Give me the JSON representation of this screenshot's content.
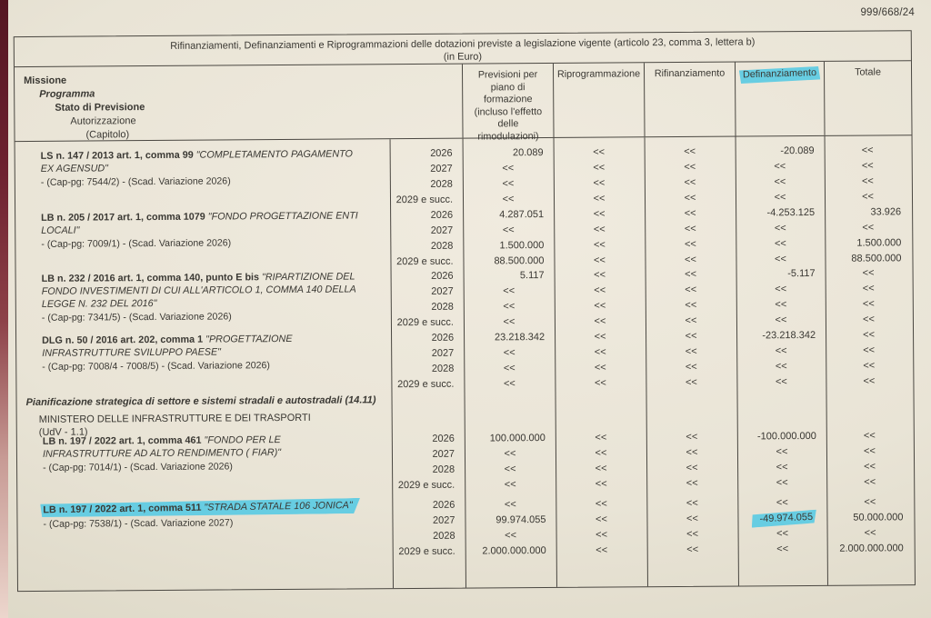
{
  "doc_number": "999/668/24",
  "table": {
    "title": "Rifinanziamenti, Definanziamenti e Riprogrammazioni delle dotazioni previste a legislazione vigente (articolo 23, comma 3, lettera b)",
    "subtitle": "(in Euro)",
    "row_header": [
      "Missione",
      "Programma",
      "Stato di Previsione",
      "Autorizzazione",
      "(Capitolo)"
    ],
    "columns": {
      "previsioni": "Previsioni per piano di formazione (incluso l'effetto delle rimodulazioni)",
      "riprogrammazione": "Riprogrammazione",
      "rifinanziamento": "Rifinanziamento",
      "definanziamento": "Definanziamento",
      "totale": "Totale"
    }
  },
  "years": [
    "2026",
    "2027",
    "2028",
    "2029 e succ."
  ],
  "section": {
    "programma": "Pianificazione strategica di settore e sistemi stradali e autostradali (14.11)",
    "stato_previsione": "MINISTERO DELLE INFRASTRUTTURE E DEI TRASPORTI",
    "udv": "(UdV - 1.1)"
  },
  "groups": [
    {
      "ref": "LS n. 147 / 2013 art. 1, comma 99 ",
      "name": "\"COMPLETAMENTO PAGAMENTO EX AGENSUD\"",
      "cap": "- (Cap-pg: 7544/2) - (Scad. Variazione 2026)",
      "previsioni": [
        "20.089",
        "<<",
        "<<",
        "<<"
      ],
      "riprogrammazione": [
        "<<",
        "<<",
        "<<",
        "<<"
      ],
      "rifinanziamento": [
        "<<",
        "<<",
        "<<",
        "<<"
      ],
      "definanziamento": [
        "-20.089",
        "<<",
        "<<",
        "<<"
      ],
      "totale": [
        "<<",
        "<<",
        "<<",
        "<<"
      ]
    },
    {
      "ref": "LB n. 205 / 2017 art. 1, comma 1079 ",
      "name": "\"FONDO PROGETTAZIONE ENTI LOCALI\"",
      "cap": "- (Cap-pg: 7009/1) - (Scad. Variazione 2026)",
      "previsioni": [
        "4.287.051",
        "<<",
        "1.500.000",
        "88.500.000"
      ],
      "riprogrammazione": [
        "<<",
        "<<",
        "<<",
        "<<"
      ],
      "rifinanziamento": [
        "<<",
        "<<",
        "<<",
        "<<"
      ],
      "definanziamento": [
        "-4.253.125",
        "<<",
        "<<",
        "<<"
      ],
      "totale": [
        "33.926",
        "<<",
        "1.500.000",
        "88.500.000"
      ]
    },
    {
      "ref": "LB n. 232 / 2016 art. 1, comma 140, punto E bis ",
      "name": "\"RIPARTIZIONE DEL FONDO INVESTIMENTI DI CUI ALL'ARTICOLO 1, COMMA 140 DELLA LEGGE N. 232 DEL 2016\"",
      "cap": "- (Cap-pg: 7341/5) - (Scad. Variazione 2026)",
      "previsioni": [
        "5.117",
        "<<",
        "<<",
        "<<"
      ],
      "riprogrammazione": [
        "<<",
        "<<",
        "<<",
        "<<"
      ],
      "rifinanziamento": [
        "<<",
        "<<",
        "<<",
        "<<"
      ],
      "definanziamento": [
        "-5.117",
        "<<",
        "<<",
        "<<"
      ],
      "totale": [
        "<<",
        "<<",
        "<<",
        "<<"
      ]
    },
    {
      "ref": "DLG n. 50 / 2016 art. 202, comma 1 ",
      "name": "\"PROGETTAZIONE INFRASTRUTTURE SVILUPPO PAESE\"",
      "cap": "- (Cap-pg: 7008/4 - 7008/5) - (Scad. Variazione 2026)",
      "previsioni": [
        "23.218.342",
        "<<",
        "<<",
        "<<"
      ],
      "riprogrammazione": [
        "<<",
        "<<",
        "<<",
        "<<"
      ],
      "rifinanziamento": [
        "<<",
        "<<",
        "<<",
        "<<"
      ],
      "definanziamento": [
        "-23.218.342",
        "<<",
        "<<",
        "<<"
      ],
      "totale": [
        "<<",
        "<<",
        "<<",
        "<<"
      ]
    },
    {
      "ref": "LB n. 197 / 2022 art. 1, comma 461 ",
      "name": "\"FONDO PER LE INFRASTRUTTURE AD ALTO RENDIMENTO ( FIAR)\"",
      "cap": "- (Cap-pg: 7014/1) - (Scad. Variazione 2026)",
      "previsioni": [
        "100.000.000",
        "<<",
        "<<",
        "<<"
      ],
      "riprogrammazione": [
        "<<",
        "<<",
        "<<",
        "<<"
      ],
      "rifinanziamento": [
        "<<",
        "<<",
        "<<",
        "<<"
      ],
      "definanziamento": [
        "-100.000.000",
        "<<",
        "<<",
        "<<"
      ],
      "totale": [
        "<<",
        "<<",
        "<<",
        "<<"
      ]
    },
    {
      "ref": "LB n. 197 / 2022 art. 1, comma 511 ",
      "name": "\"STRADA STATALE 106 JONICA\"",
      "cap": "- (Cap-pg: 7538/1) - (Scad. Variazione 2027)",
      "previsioni": [
        "<<",
        "99.974.055",
        "<<",
        "2.000.000.000"
      ],
      "riprogrammazione": [
        "<<",
        "<<",
        "<<",
        "<<"
      ],
      "rifinanziamento": [
        "<<",
        "<<",
        "<<",
        "<<"
      ],
      "definanziamento": [
        "<<",
        "-49.974.055",
        "<<",
        "<<"
      ],
      "totale": [
        "<<",
        "50.000.000",
        "<<",
        "2.000.000.000"
      ]
    }
  ],
  "colors": {
    "highlight": "#67cde2",
    "paper": "#e9e4d6",
    "table_border": "#4a4741",
    "left_margin_edge": "#6e2230"
  }
}
